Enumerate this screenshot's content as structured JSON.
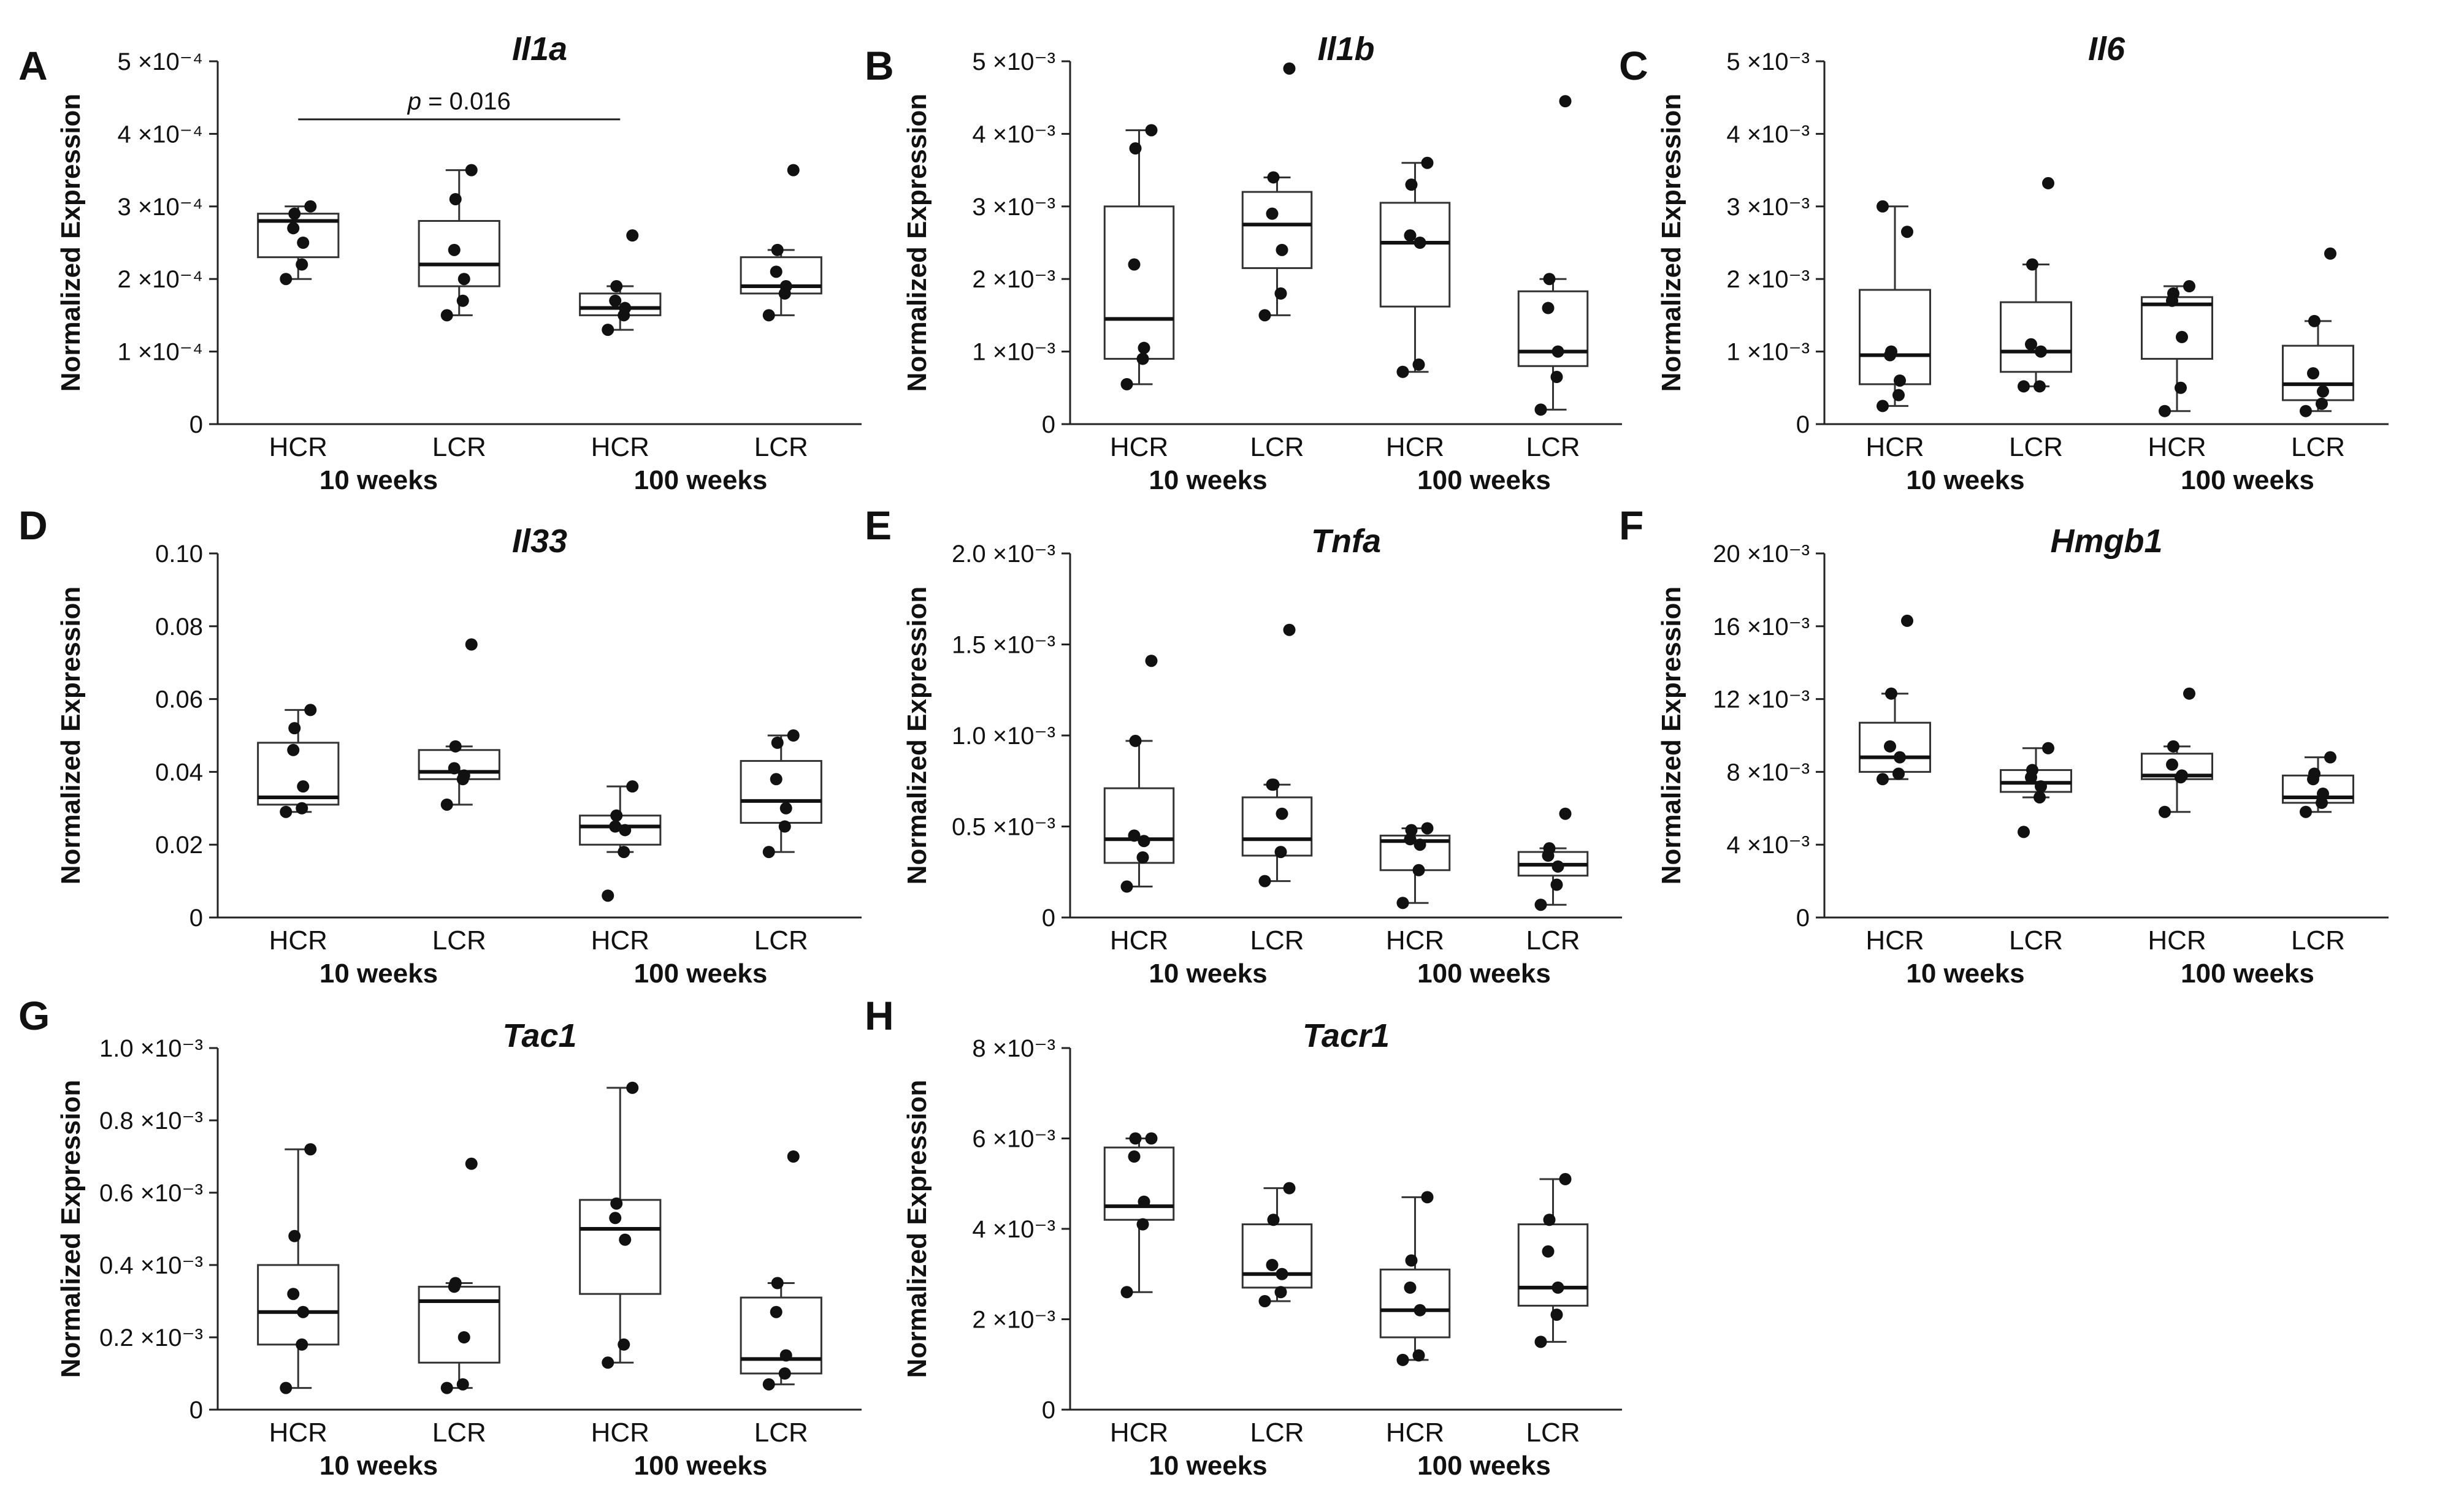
{
  "chart_data": [
    {
      "type": "box",
      "panel": "A",
      "title": "Il1a",
      "ylabel": "Normalized Expression",
      "ylim": [
        0,
        0.0005
      ],
      "yticks": [
        {
          "value": 0,
          "label": "0"
        },
        {
          "value": 0.0001,
          "label": "1 ×10⁻⁴"
        },
        {
          "value": 0.0002,
          "label": "2 ×10⁻⁴"
        },
        {
          "value": 0.0003,
          "label": "3 ×10⁻⁴"
        },
        {
          "value": 0.0004,
          "label": "4 ×10⁻⁴"
        },
        {
          "value": 0.0005,
          "label": "5 ×10⁻⁴"
        }
      ],
      "categories": [
        "HCR",
        "LCR",
        "HCR",
        "LCR"
      ],
      "groups": [
        "10 weeks",
        "100 weeks"
      ],
      "boxes": [
        {
          "min": 0.0002,
          "q1": 0.00023,
          "median": 0.00028,
          "q3": 0.00029,
          "max": 0.0003,
          "points": [
            0.0002,
            0.00022,
            0.00025,
            0.00027,
            0.00029,
            0.0003
          ]
        },
        {
          "min": 0.00015,
          "q1": 0.00019,
          "median": 0.00022,
          "q3": 0.00028,
          "max": 0.00035,
          "points": [
            0.00015,
            0.00017,
            0.0002,
            0.00024,
            0.00031,
            0.00035
          ]
        },
        {
          "min": 0.00013,
          "q1": 0.00015,
          "median": 0.00016,
          "q3": 0.00018,
          "max": 0.00019,
          "points": [
            0.00013,
            0.00015,
            0.00016,
            0.00017,
            0.00019,
            0.00026
          ]
        },
        {
          "min": 0.00015,
          "q1": 0.00018,
          "median": 0.00019,
          "q3": 0.00023,
          "max": 0.00024,
          "points": [
            0.00015,
            0.00018,
            0.00019,
            0.00021,
            0.00024,
            0.00035
          ]
        }
      ],
      "annotation": {
        "label": "p",
        "value": " = 0.016",
        "from": 0,
        "to": 2,
        "y": 0.00042
      }
    },
    {
      "type": "box",
      "panel": "B",
      "title": "Il1b",
      "ylabel": "Normalized Expression",
      "ylim": [
        0,
        0.005
      ],
      "yticks": [
        {
          "value": 0,
          "label": "0"
        },
        {
          "value": 0.001,
          "label": "1 ×10⁻³"
        },
        {
          "value": 0.002,
          "label": "2 ×10⁻³"
        },
        {
          "value": 0.003,
          "label": "3 ×10⁻³"
        },
        {
          "value": 0.004,
          "label": "4 ×10⁻³"
        },
        {
          "value": 0.005,
          "label": "5 ×10⁻³"
        }
      ],
      "categories": [
        "HCR",
        "LCR",
        "HCR",
        "LCR"
      ],
      "groups": [
        "10 weeks",
        "100 weeks"
      ],
      "boxes": [
        {
          "min": 0.00055,
          "q1": 0.0009,
          "median": 0.00145,
          "q3": 0.003,
          "max": 0.00405,
          "points": [
            0.00055,
            0.0009,
            0.00105,
            0.0022,
            0.0038,
            0.00405
          ]
        },
        {
          "min": 0.0015,
          "q1": 0.00215,
          "median": 0.00275,
          "q3": 0.0032,
          "max": 0.0034,
          "points": [
            0.0015,
            0.0018,
            0.0024,
            0.0029,
            0.0034,
            0.0049
          ]
        },
        {
          "min": 0.00072,
          "q1": 0.00162,
          "median": 0.0025,
          "q3": 0.00305,
          "max": 0.0036,
          "points": [
            0.00072,
            0.00082,
            0.0025,
            0.0026,
            0.0033,
            0.0036
          ]
        },
        {
          "min": 0.0002,
          "q1": 0.0008,
          "median": 0.001,
          "q3": 0.00183,
          "max": 0.002,
          "points": [
            0.0002,
            0.00065,
            0.001,
            0.0016,
            0.002,
            0.00445
          ]
        }
      ]
    },
    {
      "type": "box",
      "panel": "C",
      "title": "Il6",
      "ylabel": "Normalized Expression",
      "ylim": [
        0,
        0.005
      ],
      "yticks": [
        {
          "value": 0,
          "label": "0"
        },
        {
          "value": 0.001,
          "label": "1 ×10⁻³"
        },
        {
          "value": 0.002,
          "label": "2 ×10⁻³"
        },
        {
          "value": 0.003,
          "label": "3 ×10⁻³"
        },
        {
          "value": 0.004,
          "label": "4 ×10⁻³"
        },
        {
          "value": 0.005,
          "label": "5 ×10⁻³"
        }
      ],
      "categories": [
        "HCR",
        "LCR",
        "HCR",
        "LCR"
      ],
      "groups": [
        "10 weeks",
        "100 weeks"
      ],
      "boxes": [
        {
          "min": 0.00025,
          "q1": 0.00055,
          "median": 0.00095,
          "q3": 0.00185,
          "max": 0.003,
          "points": [
            0.00025,
            0.0004,
            0.0006,
            0.00095,
            0.001,
            0.00265,
            0.003
          ]
        },
        {
          "min": 0.00052,
          "q1": 0.00072,
          "median": 0.001,
          "q3": 0.00168,
          "max": 0.0022,
          "points": [
            0.00052,
            0.00052,
            0.001,
            0.0011,
            0.0022,
            0.00332
          ]
        },
        {
          "min": 0.00018,
          "q1": 0.0009,
          "median": 0.00165,
          "q3": 0.00175,
          "max": 0.0019,
          "points": [
            0.00018,
            0.0005,
            0.0012,
            0.0017,
            0.0018,
            0.0019
          ]
        },
        {
          "min": 0.00018,
          "q1": 0.00033,
          "median": 0.00055,
          "q3": 0.00108,
          "max": 0.00142,
          "points": [
            0.00018,
            0.00028,
            0.00045,
            0.0007,
            0.00142,
            0.00235
          ]
        }
      ]
    },
    {
      "type": "box",
      "panel": "D",
      "title": "Il33",
      "ylabel": "Normalized Expression",
      "ylim": [
        0,
        0.1
      ],
      "yticks": [
        {
          "value": 0,
          "label": "0"
        },
        {
          "value": 0.02,
          "label": "0.02"
        },
        {
          "value": 0.04,
          "label": "0.04"
        },
        {
          "value": 0.06,
          "label": "0.06"
        },
        {
          "value": 0.08,
          "label": "0.08"
        },
        {
          "value": 0.1,
          "label": "0.10"
        }
      ],
      "categories": [
        "HCR",
        "LCR",
        "HCR",
        "LCR"
      ],
      "groups": [
        "10 weeks",
        "100 weeks"
      ],
      "boxes": [
        {
          "min": 0.029,
          "q1": 0.031,
          "median": 0.033,
          "q3": 0.048,
          "max": 0.057,
          "points": [
            0.029,
            0.03,
            0.036,
            0.046,
            0.052,
            0.057
          ]
        },
        {
          "min": 0.031,
          "q1": 0.038,
          "median": 0.04,
          "q3": 0.046,
          "max": 0.047,
          "points": [
            0.031,
            0.038,
            0.039,
            0.041,
            0.047,
            0.075
          ]
        },
        {
          "min": 0.018,
          "q1": 0.02,
          "median": 0.025,
          "q3": 0.028,
          "max": 0.036,
          "points": [
            0.006,
            0.018,
            0.024,
            0.025,
            0.028,
            0.036
          ]
        },
        {
          "min": 0.018,
          "q1": 0.026,
          "median": 0.032,
          "q3": 0.043,
          "max": 0.05,
          "points": [
            0.018,
            0.025,
            0.03,
            0.038,
            0.048,
            0.05
          ]
        }
      ]
    },
    {
      "type": "box",
      "panel": "E",
      "title": "Tnfa",
      "ylabel": "Normalized Expression",
      "ylim": [
        0,
        0.002
      ],
      "yticks": [
        {
          "value": 0,
          "label": "0"
        },
        {
          "value": 0.0005,
          "label": "0.5 ×10⁻³"
        },
        {
          "value": 0.001,
          "label": "1.0 ×10⁻³"
        },
        {
          "value": 0.0015,
          "label": "1.5 ×10⁻³"
        },
        {
          "value": 0.002,
          "label": "2.0 ×10⁻³"
        }
      ],
      "categories": [
        "HCR",
        "LCR",
        "HCR",
        "LCR"
      ],
      "groups": [
        "10 weeks",
        "100 weeks"
      ],
      "boxes": [
        {
          "min": 0.00017,
          "q1": 0.0003,
          "median": 0.00043,
          "q3": 0.00071,
          "max": 0.00097,
          "points": [
            0.00017,
            0.00033,
            0.00042,
            0.00045,
            0.00097,
            0.00141
          ]
        },
        {
          "min": 0.0002,
          "q1": 0.00034,
          "median": 0.00043,
          "q3": 0.00066,
          "max": 0.00073,
          "points": [
            0.0002,
            0.00036,
            0.00057,
            0.00073,
            0.00073,
            0.00158
          ]
        },
        {
          "min": 8e-05,
          "q1": 0.00026,
          "median": 0.00042,
          "q3": 0.00045,
          "max": 0.00049,
          "points": [
            8e-05,
            0.00026,
            0.0004,
            0.00043,
            0.00048,
            0.00049
          ]
        },
        {
          "min": 7e-05,
          "q1": 0.00023,
          "median": 0.00029,
          "q3": 0.00036,
          "max": 0.00038,
          "points": [
            7e-05,
            0.00018,
            0.00028,
            0.00034,
            0.00038,
            0.00057
          ]
        }
      ]
    },
    {
      "type": "box",
      "panel": "F",
      "title": "Hmgb1",
      "ylabel": "Normalized Expression",
      "ylim": [
        0,
        0.02
      ],
      "yticks": [
        {
          "value": 0,
          "label": "0"
        },
        {
          "value": 0.004,
          "label": "4 ×10⁻³"
        },
        {
          "value": 0.008,
          "label": "8 ×10⁻³"
        },
        {
          "value": 0.012,
          "label": "12 ×10⁻³"
        },
        {
          "value": 0.016,
          "label": "16 ×10⁻³"
        },
        {
          "value": 0.02,
          "label": "20 ×10⁻³"
        }
      ],
      "categories": [
        "HCR",
        "LCR",
        "HCR",
        "LCR"
      ],
      "groups": [
        "10 weeks",
        "100 weeks"
      ],
      "boxes": [
        {
          "min": 0.0076,
          "q1": 0.008,
          "median": 0.0088,
          "q3": 0.0107,
          "max": 0.0123,
          "points": [
            0.0076,
            0.0079,
            0.0088,
            0.0094,
            0.0123,
            0.0163
          ]
        },
        {
          "min": 0.0066,
          "q1": 0.0069,
          "median": 0.0074,
          "q3": 0.0081,
          "max": 0.0093,
          "points": [
            0.0047,
            0.0066,
            0.0072,
            0.0077,
            0.0081,
            0.0093
          ]
        },
        {
          "min": 0.0058,
          "q1": 0.0076,
          "median": 0.0078,
          "q3": 0.009,
          "max": 0.0094,
          "points": [
            0.0058,
            0.0077,
            0.0078,
            0.0084,
            0.0094,
            0.0123
          ]
        },
        {
          "min": 0.0058,
          "q1": 0.0063,
          "median": 0.0066,
          "q3": 0.0078,
          "max": 0.0088,
          "points": [
            0.0058,
            0.0063,
            0.0068,
            0.0076,
            0.0079,
            0.0088
          ]
        }
      ]
    },
    {
      "type": "box",
      "panel": "G",
      "title": "Tac1",
      "ylabel": "Normalized Expression",
      "ylim": [
        0,
        0.001
      ],
      "yticks": [
        {
          "value": 0,
          "label": "0"
        },
        {
          "value": 0.0002,
          "label": "0.2 ×10⁻³"
        },
        {
          "value": 0.0004,
          "label": "0.4 ×10⁻³"
        },
        {
          "value": 0.0006,
          "label": "0.6 ×10⁻³"
        },
        {
          "value": 0.0008,
          "label": "0.8 ×10⁻³"
        },
        {
          "value": 0.001,
          "label": "1.0 ×10⁻³"
        }
      ],
      "categories": [
        "HCR",
        "LCR",
        "HCR",
        "LCR"
      ],
      "groups": [
        "10 weeks",
        "100 weeks"
      ],
      "boxes": [
        {
          "min": 6e-05,
          "q1": 0.00018,
          "median": 0.00027,
          "q3": 0.0004,
          "max": 0.00072,
          "points": [
            6e-05,
            0.00018,
            0.00027,
            0.00032,
            0.00048,
            0.00072
          ]
        },
        {
          "min": 6e-05,
          "q1": 0.00013,
          "median": 0.0003,
          "q3": 0.00034,
          "max": 0.00035,
          "points": [
            6e-05,
            7e-05,
            0.0002,
            0.00034,
            0.00035,
            0.00068
          ]
        },
        {
          "min": 0.00013,
          "q1": 0.00032,
          "median": 0.0005,
          "q3": 0.00058,
          "max": 0.00089,
          "points": [
            0.00013,
            0.00018,
            0.00047,
            0.00053,
            0.00057,
            0.00089
          ]
        },
        {
          "min": 7e-05,
          "q1": 0.0001,
          "median": 0.00014,
          "q3": 0.00031,
          "max": 0.00035,
          "points": [
            7e-05,
            0.0001,
            0.00015,
            0.00027,
            0.00035,
            0.0007
          ]
        }
      ]
    },
    {
      "type": "box",
      "panel": "H",
      "title": "Tacr1",
      "ylabel": "Normalized Expression",
      "ylim": [
        0,
        0.008
      ],
      "yticks": [
        {
          "value": 0,
          "label": "0"
        },
        {
          "value": 0.002,
          "label": "2 ×10⁻³"
        },
        {
          "value": 0.004,
          "label": "4 ×10⁻³"
        },
        {
          "value": 0.006,
          "label": "6 ×10⁻³"
        },
        {
          "value": 0.008,
          "label": "8 ×10⁻³"
        }
      ],
      "categories": [
        "HCR",
        "LCR",
        "HCR",
        "LCR"
      ],
      "groups": [
        "10 weeks",
        "100 weeks"
      ],
      "boxes": [
        {
          "min": 0.0026,
          "q1": 0.0042,
          "median": 0.0045,
          "q3": 0.0058,
          "max": 0.006,
          "points": [
            0.0026,
            0.0041,
            0.0046,
            0.0056,
            0.006,
            0.006
          ]
        },
        {
          "min": 0.0024,
          "q1": 0.0027,
          "median": 0.003,
          "q3": 0.0041,
          "max": 0.0049,
          "points": [
            0.0024,
            0.0026,
            0.003,
            0.0032,
            0.0042,
            0.0049
          ]
        },
        {
          "min": 0.0011,
          "q1": 0.0016,
          "median": 0.0022,
          "q3": 0.0031,
          "max": 0.0047,
          "points": [
            0.0011,
            0.0012,
            0.0022,
            0.0027,
            0.0033,
            0.0047
          ]
        },
        {
          "min": 0.0015,
          "q1": 0.0023,
          "median": 0.0027,
          "q3": 0.0041,
          "max": 0.0051,
          "points": [
            0.0015,
            0.0021,
            0.0027,
            0.0035,
            0.0042,
            0.0051
          ]
        }
      ]
    }
  ]
}
